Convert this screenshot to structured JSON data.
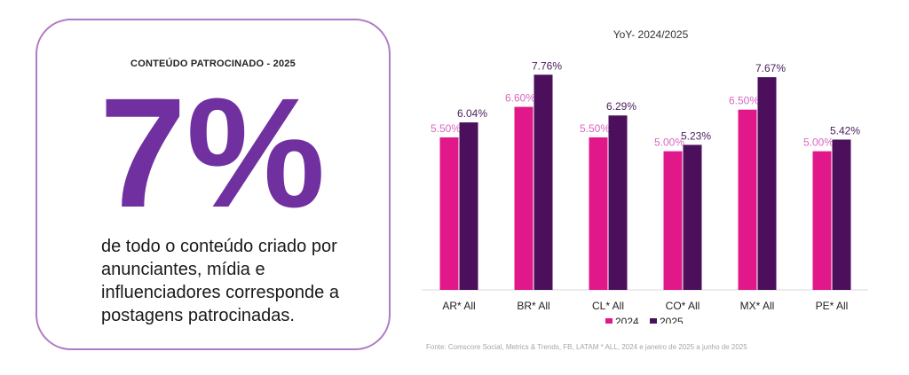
{
  "card": {
    "label": "CONTEÚDO PATROCINADO - 2025",
    "stat": "7%",
    "description": "de todo o conteúdo criado por anunciantes, mídia e influenciadores corresponde a postagens patrocinadas."
  },
  "source": "Fonte: Comscore Social, Metrics & Trends, FB, LATAM * ALL, 2024 e janeiro de 2025 a junho de 2025",
  "colors": {
    "accent": "#7030a0",
    "border": "#b07ac2",
    "series_2024": "#e0188a",
    "series_2025": "#4b0f5c",
    "label_2024": "#d867c0",
    "label_2025": "#4b1d5c"
  },
  "chart_data": {
    "type": "bar",
    "title": "YoY- 2024/2025",
    "categories": [
      "AR* All",
      "BR* All",
      "CL* All",
      "CO* All",
      "MX* All",
      "PE* All"
    ],
    "series": [
      {
        "name": "2024",
        "values": [
          5.5,
          6.6,
          5.5,
          5.0,
          6.5,
          5.0
        ],
        "labels": [
          "5.50%",
          "6.60%",
          "5.50%",
          "5.00%",
          "6.50%",
          "5.00%"
        ]
      },
      {
        "name": "2025",
        "values": [
          6.04,
          7.76,
          6.29,
          5.23,
          7.67,
          5.42
        ],
        "labels": [
          "6.04%",
          "7.76%",
          "6.29%",
          "5.23%",
          "7.67%",
          "5.42%"
        ]
      }
    ],
    "ylim": [
      0,
      8.12
    ],
    "grid": false,
    "legend": "bottom",
    "unit": "%"
  }
}
